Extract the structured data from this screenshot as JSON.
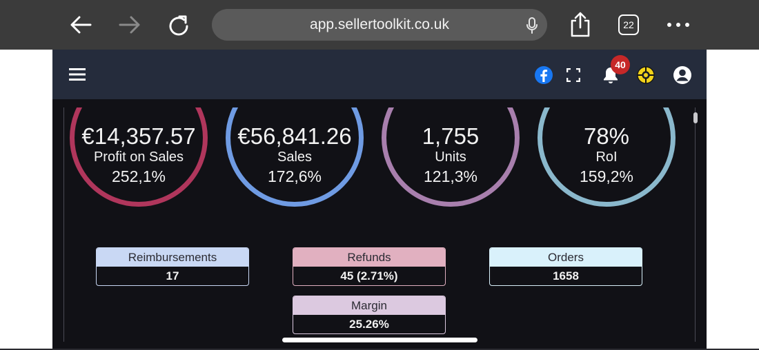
{
  "browser": {
    "url": "app.sellertoolkit.co.uk",
    "tab_count": "22",
    "icons": {
      "back": "arrow-left-icon",
      "forward": "arrow-right-icon",
      "reload": "reload-icon",
      "mic": "microphone-icon",
      "share": "share-icon",
      "tabs": "tabs-icon",
      "more": "more-icon"
    }
  },
  "app_bar": {
    "notification_count": "40",
    "icons": {
      "menu": "hamburger-menu-icon",
      "facebook": "facebook-icon",
      "fullscreen": "fullscreen-icon",
      "notifications": "bell-icon",
      "help": "lifebuoy-icon",
      "account": "account-icon"
    }
  },
  "kpis": [
    {
      "value": "€14,357.57",
      "label": "Profit on Sales",
      "change": "252,1%",
      "color": "#b0365c"
    },
    {
      "value": "€56,841.26",
      "label": "Sales",
      "change": "172,6%",
      "color": "#6f9be3"
    },
    {
      "value": "1,755",
      "label": "Units",
      "change": "121,3%",
      "color": "#a87fad"
    },
    {
      "value": "78%",
      "label": "RoI",
      "change": "159,2%",
      "color": "#8ab8cc"
    }
  ],
  "cards": {
    "reimbursements": {
      "label": "Reimbursements",
      "value": "17",
      "color": "#c9d8f4"
    },
    "refunds": {
      "label": "Refunds",
      "value": "45 (2.71%)",
      "color": "#e1b0c0"
    },
    "orders": {
      "label": "Orders",
      "value": "1658",
      "color": "#d9f1fb"
    },
    "margin": {
      "label": "Margin",
      "value": "25.26%",
      "color": "#dcc9e0"
    }
  }
}
